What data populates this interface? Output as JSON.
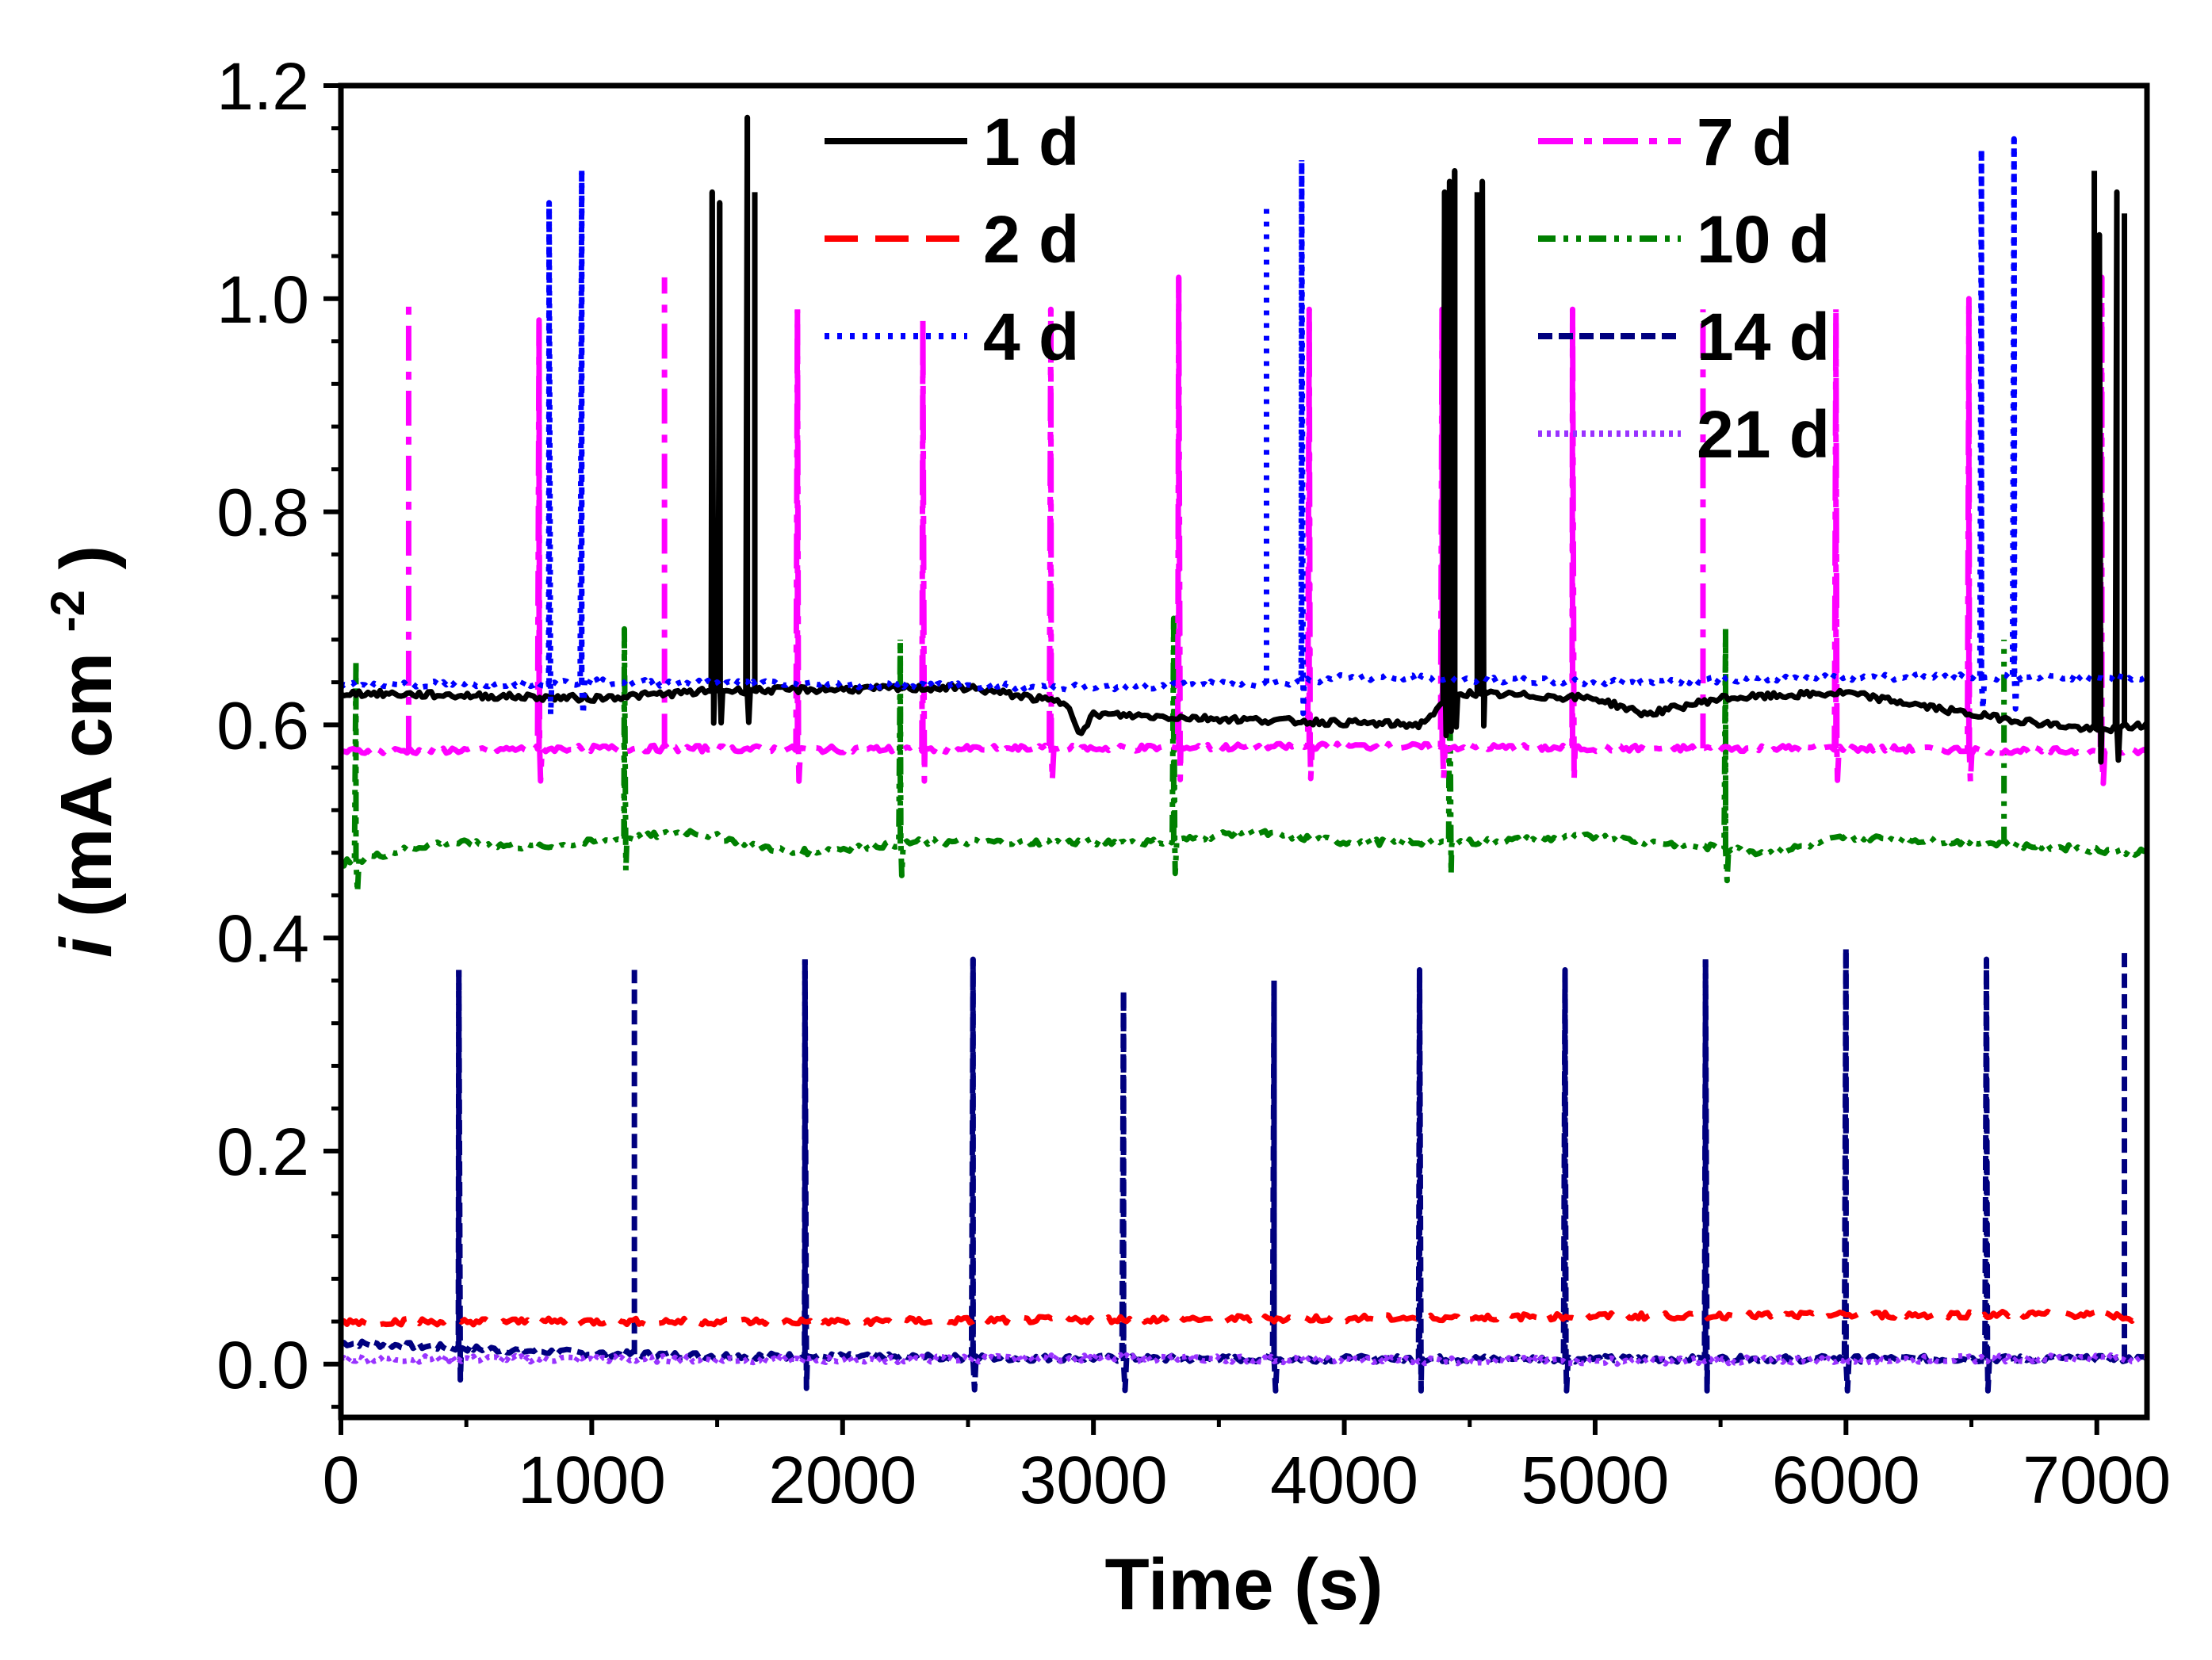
{
  "chart_data": {
    "type": "line",
    "title": "",
    "xlabel": "Time (s)",
    "ylabel": {
      "italic_symbol": "i",
      "unit_main": " (mA cm",
      "unit_superscript": "-2",
      "unit_close": ")"
    },
    "xlim": [
      0,
      7200
    ],
    "ylim": [
      -0.05,
      1.2
    ],
    "x_ticks": [
      0,
      1000,
      2000,
      3000,
      4000,
      5000,
      6000,
      7000
    ],
    "x_tick_labels": [
      "0",
      "1000",
      "2000",
      "3000",
      "4000",
      "5000",
      "6000",
      "7000"
    ],
    "y_ticks": [
      0.0,
      0.2,
      0.4,
      0.6,
      0.8,
      1.0,
      1.2
    ],
    "y_tick_labels": [
      "0.0",
      "0.2",
      "0.4",
      "0.6",
      "0.8",
      "1.0",
      "1.2"
    ],
    "grid": false,
    "legend_position": "top",
    "series": [
      {
        "name": "1 d",
        "color": "#000000",
        "dash": "solid",
        "baseline": [
          [
            0,
            0.63
          ],
          [
            1000,
            0.625
          ],
          [
            1500,
            0.632
          ],
          [
            2500,
            0.635
          ],
          [
            2900,
            0.62
          ],
          [
            2950,
            0.59
          ],
          [
            3000,
            0.61
          ],
          [
            3600,
            0.605
          ],
          [
            4300,
            0.6
          ],
          [
            4450,
            0.63
          ],
          [
            5000,
            0.625
          ],
          [
            5200,
            0.61
          ],
          [
            5500,
            0.625
          ],
          [
            6000,
            0.63
          ],
          [
            6500,
            0.61
          ],
          [
            7000,
            0.595
          ],
          [
            7200,
            0.6
          ]
        ],
        "spikes": [
          [
            1480,
            1.1
          ],
          [
            1510,
            1.09
          ],
          [
            1620,
            1.17
          ],
          [
            1650,
            1.1
          ],
          [
            4400,
            1.1
          ],
          [
            4420,
            1.11
          ],
          [
            4440,
            1.12
          ],
          [
            4530,
            1.1
          ],
          [
            4550,
            1.11
          ],
          [
            6990,
            1.12
          ],
          [
            7010,
            1.06
          ],
          [
            7080,
            1.1
          ],
          [
            7110,
            1.08
          ]
        ]
      },
      {
        "name": "2 d",
        "color": "#ff0000",
        "dash": "long-dash",
        "baseline": [
          [
            0,
            0.04
          ],
          [
            1000,
            0.04
          ],
          [
            2000,
            0.04
          ],
          [
            3000,
            0.042
          ],
          [
            4000,
            0.043
          ],
          [
            5000,
            0.045
          ],
          [
            6000,
            0.046
          ],
          [
            6900,
            0.047
          ],
          [
            7100,
            0.045
          ],
          [
            7200,
            0.038
          ]
        ],
        "spikes": []
      },
      {
        "name": "4 d",
        "color": "#0000ff",
        "dash": "dot",
        "baseline": [
          [
            0,
            0.637
          ],
          [
            1000,
            0.64
          ],
          [
            2000,
            0.638
          ],
          [
            3000,
            0.635
          ],
          [
            3800,
            0.64
          ],
          [
            4000,
            0.645
          ],
          [
            5000,
            0.64
          ],
          [
            6000,
            0.645
          ],
          [
            7000,
            0.645
          ],
          [
            7200,
            0.643
          ]
        ],
        "spikes": [
          [
            830,
            1.09
          ],
          [
            960,
            1.12
          ],
          [
            3690,
            1.09
          ],
          [
            3830,
            1.13
          ],
          [
            6540,
            1.14
          ],
          [
            6670,
            1.15
          ]
        ]
      },
      {
        "name": "7 d",
        "color": "#ff00ff",
        "dash": "dash-dot",
        "baseline": [
          [
            0,
            0.575
          ],
          [
            1000,
            0.578
          ],
          [
            2000,
            0.577
          ],
          [
            3000,
            0.578
          ],
          [
            4000,
            0.58
          ],
          [
            5000,
            0.578
          ],
          [
            6000,
            0.578
          ],
          [
            7000,
            0.575
          ],
          [
            7200,
            0.575
          ]
        ],
        "spikes": [
          [
            270,
            1.0
          ],
          [
            790,
            0.98
          ],
          [
            1290,
            1.02
          ],
          [
            1820,
            0.99
          ],
          [
            2320,
            0.98
          ],
          [
            2830,
            0.99
          ],
          [
            3340,
            1.02
          ],
          [
            3860,
            0.99
          ],
          [
            4390,
            0.99
          ],
          [
            4910,
            0.99
          ],
          [
            5430,
            0.99
          ],
          [
            5960,
            0.99
          ],
          [
            6490,
            1.0
          ],
          [
            7020,
            1.02
          ]
        ]
      },
      {
        "name": "10 d",
        "color": "#008000",
        "dash": "dash-dot-dot",
        "baseline": [
          [
            0,
            0.47
          ],
          [
            200,
            0.48
          ],
          [
            400,
            0.49
          ],
          [
            800,
            0.485
          ],
          [
            1400,
            0.5
          ],
          [
            1800,
            0.48
          ],
          [
            2300,
            0.49
          ],
          [
            2800,
            0.49
          ],
          [
            3300,
            0.49
          ],
          [
            3600,
            0.5
          ],
          [
            4000,
            0.49
          ],
          [
            4500,
            0.49
          ],
          [
            5000,
            0.495
          ],
          [
            5700,
            0.48
          ],
          [
            6000,
            0.495
          ],
          [
            6500,
            0.49
          ],
          [
            7200,
            0.48
          ]
        ],
        "spikes": [
          [
            60,
            0.66
          ],
          [
            1130,
            0.69
          ],
          [
            2230,
            0.68
          ],
          [
            3320,
            0.7
          ],
          [
            4420,
            0.69
          ],
          [
            5520,
            0.69
          ],
          [
            6630,
            0.68
          ]
        ]
      },
      {
        "name": "14 d",
        "color": "#00007f",
        "dash": "short-dash",
        "baseline": [
          [
            0,
            0.02
          ],
          [
            500,
            0.015
          ],
          [
            1000,
            0.01
          ],
          [
            1500,
            0.008
          ],
          [
            2500,
            0.006
          ],
          [
            3500,
            0.005
          ],
          [
            4500,
            0.005
          ],
          [
            5500,
            0.005
          ],
          [
            6500,
            0.005
          ],
          [
            7200,
            0.005
          ]
        ],
        "spikes": [
          [
            470,
            0.37
          ],
          [
            1170,
            0.37
          ],
          [
            1850,
            0.38
          ],
          [
            2520,
            0.38
          ],
          [
            3120,
            0.35
          ],
          [
            3720,
            0.36
          ],
          [
            4300,
            0.37
          ],
          [
            4880,
            0.37
          ],
          [
            5440,
            0.38
          ],
          [
            6000,
            0.39
          ],
          [
            6560,
            0.38
          ],
          [
            7110,
            0.39
          ]
        ]
      },
      {
        "name": "21 d",
        "color": "#9933ff",
        "dash": "dense-dot",
        "baseline": [
          [
            0,
            0.005
          ],
          [
            1000,
            0.005
          ],
          [
            2000,
            0.004
          ],
          [
            3000,
            0.006
          ],
          [
            4000,
            0.004
          ],
          [
            5000,
            0.003
          ],
          [
            6000,
            0.004
          ],
          [
            7000,
            0.006
          ],
          [
            7200,
            0.005
          ]
        ],
        "spikes": []
      }
    ]
  }
}
